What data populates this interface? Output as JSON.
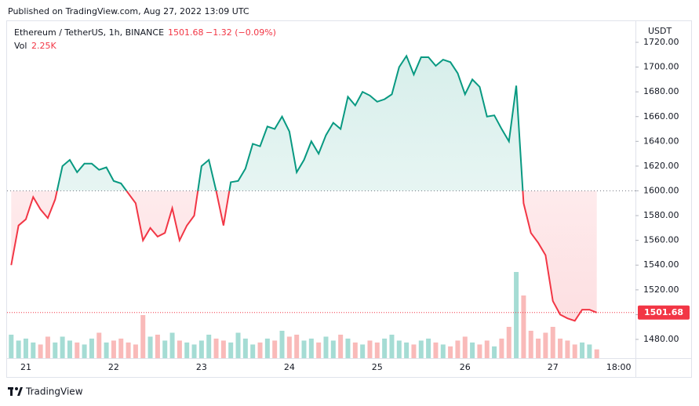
{
  "header": "Published on TradingView.com, Aug 27, 2022 13:09 UTC",
  "footer": "TradingView",
  "chart_data": {
    "type": "baseline",
    "symbol": "Ethereum / TetherUS, 1h, BINANCE",
    "change": "−1.32 (−0.09%)",
    "y_axis_label": "USDT",
    "baseline": 1600,
    "categories": [
      null,
      null,
      "21",
      null,
      null,
      null,
      null,
      null,
      null,
      null,
      null,
      null,
      null,
      null,
      "22",
      null,
      null,
      null,
      null,
      null,
      null,
      null,
      null,
      null,
      null,
      null,
      "23",
      null,
      null,
      null,
      null,
      null,
      null,
      null,
      null,
      null,
      null,
      null,
      "24",
      null,
      null,
      null,
      null,
      null,
      null,
      null,
      null,
      null,
      null,
      null,
      "25",
      null,
      null,
      null,
      null,
      null,
      null,
      null,
      null,
      null,
      null,
      null,
      "26",
      null,
      null,
      null,
      null,
      null,
      null,
      null,
      null,
      null,
      null,
      null,
      "27",
      null,
      null,
      null,
      null,
      null,
      null,
      null,
      null,
      "18:00"
    ],
    "series": [
      {
        "name": "Ethereum / TetherUS, 1h, BINANCE",
        "color_up": "#089981",
        "color_down": "#f23645",
        "values": [
          1540,
          1572,
          1577,
          1595,
          1585,
          1578,
          1593,
          1620,
          1625,
          1615,
          1622,
          1622,
          1617,
          1619,
          1608,
          1606,
          1598,
          1590,
          1560,
          1570,
          1563,
          1566,
          1586,
          1560,
          1572,
          1580,
          1620,
          1625,
          1600,
          1572,
          1607,
          1608,
          1618,
          1638,
          1636,
          1652,
          1650,
          1660,
          1648,
          1615,
          1625,
          1640,
          1630,
          1645,
          1655,
          1650,
          1676,
          1669,
          1680,
          1677,
          1672,
          1674,
          1678,
          1700,
          1709,
          1694,
          1708,
          1708,
          1701,
          1706,
          1704,
          1695,
          1678,
          1690,
          1684,
          1660,
          1661,
          1650,
          1640,
          1685,
          1590,
          1566,
          1558,
          1548,
          1511,
          1500,
          1497,
          1495,
          1504,
          1504,
          1501.68,
          null,
          null,
          null
        ]
      },
      {
        "name": "Vol",
        "color_up": "#8fd3c9",
        "color_down": "#f7a9a7",
        "values": [
          6000,
          4500,
          5000,
          4000,
          3500,
          5500,
          4000,
          5500,
          4500,
          4000,
          3500,
          5000,
          6500,
          4000,
          4500,
          5000,
          4000,
          3500,
          11000,
          5500,
          6000,
          4500,
          6500,
          4500,
          4000,
          3500,
          4500,
          6000,
          5000,
          4500,
          4000,
          6500,
          5000,
          3500,
          4000,
          5000,
          4500,
          7000,
          5500,
          6000,
          4500,
          5000,
          4000,
          5500,
          4500,
          6000,
          5000,
          4000,
          3500,
          4500,
          4000,
          5000,
          6000,
          4500,
          4000,
          3500,
          4500,
          5000,
          4000,
          3500,
          3000,
          4500,
          5500,
          4000,
          3500,
          4500,
          3000,
          5000,
          8000,
          22000,
          16000,
          7000,
          5000,
          6500,
          8000,
          5000,
          4500,
          3500,
          4000,
          3500,
          2250,
          null,
          null,
          null
        ],
        "value_labels": [
          null,
          null,
          null,
          null,
          null,
          null,
          null,
          null,
          null,
          null,
          null,
          null,
          null,
          null,
          null,
          null,
          null,
          null,
          null,
          null,
          null,
          null,
          null,
          null,
          null,
          null,
          null,
          null,
          null,
          null,
          null,
          null,
          null,
          null,
          null,
          null,
          null,
          null,
          null,
          null,
          null,
          null,
          null,
          null,
          null,
          null,
          null,
          null,
          null,
          null,
          null,
          null,
          null,
          null,
          null,
          null,
          null,
          null,
          null,
          null,
          null,
          null,
          null,
          null,
          null,
          null,
          null,
          null,
          null,
          null,
          null,
          null,
          null,
          null,
          null,
          null,
          null,
          null,
          null,
          null,
          "2.25K",
          null,
          null,
          null
        ]
      }
    ],
    "ylim": [
      1464.8,
      1735.2
    ],
    "yticks": [
      {
        "value": 1480,
        "label": "1480.00"
      },
      {
        "value": 1500,
        "label": "1500.00"
      },
      {
        "value": 1520,
        "label": "1520.00"
      },
      {
        "value": 1540,
        "label": "1540.00"
      },
      {
        "value": 1560,
        "label": "1560.00"
      },
      {
        "value": 1580,
        "label": "1580.00"
      },
      {
        "value": 1600,
        "label": "1600.00"
      },
      {
        "value": 1620,
        "label": "1620.00"
      },
      {
        "value": 1640,
        "label": "1640.00"
      },
      {
        "value": 1660,
        "label": "1660.00"
      },
      {
        "value": 1680,
        "label": "1680.00"
      },
      {
        "value": 1700,
        "label": "1700.00"
      },
      {
        "value": 1720,
        "label": "1720.00"
      }
    ]
  }
}
